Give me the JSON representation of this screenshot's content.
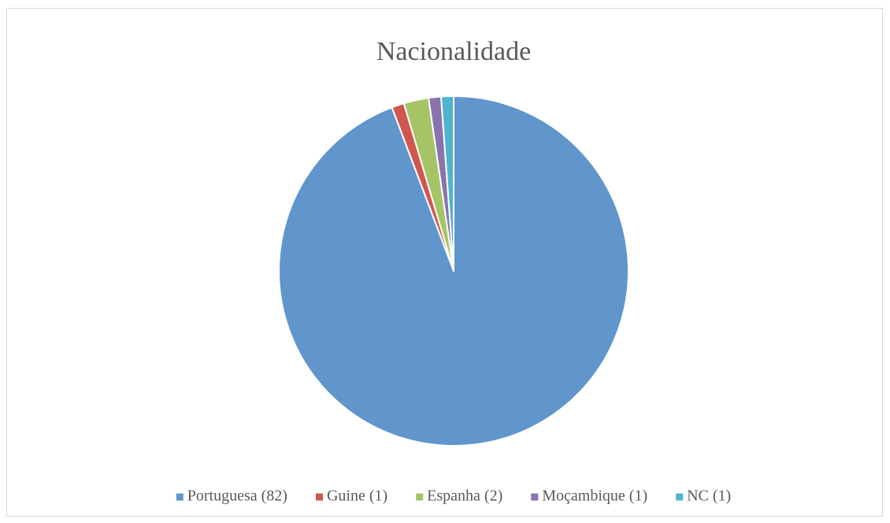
{
  "chart_data": {
    "type": "pie",
    "title": "Nacionalidade",
    "categories": [
      "Portuguesa (82)",
      "Guine (1)",
      "Espanha (2)",
      "Moçambique (1)",
      "NC (1)"
    ],
    "values": [
      82,
      1,
      2,
      1,
      1
    ],
    "colors": [
      "#6096cb",
      "#d0574f",
      "#a5c466",
      "#8a73ae",
      "#4fb4d0"
    ],
    "legend": "bottom"
  }
}
